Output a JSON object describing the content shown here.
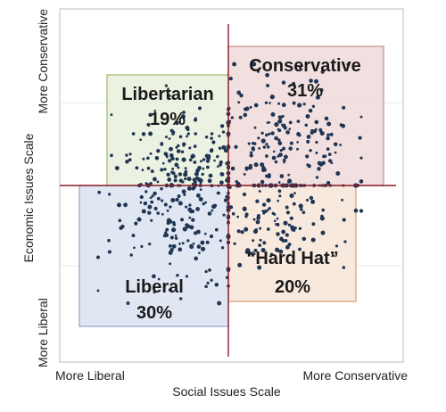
{
  "chart_data": {
    "type": "scatter",
    "title": "",
    "xlabel": "Social Issues Scale",
    "ylabel": "Economic Issues Scale",
    "x_tick_labels": [
      "More Liberal",
      "More Conservative"
    ],
    "y_tick_labels": [
      "More Liberal",
      "More Conservative"
    ],
    "xlim": [
      -1,
      1
    ],
    "ylim": [
      -1,
      1
    ],
    "grid": true,
    "quadrants": [
      {
        "key": "libertarian",
        "name": "Libertarian",
        "percent": "19%",
        "fill": "#e9f0dc",
        "stroke": "#9fb86f"
      },
      {
        "key": "conservative",
        "name": "Conservative",
        "percent": "31%",
        "fill": "#f0dada",
        "stroke": "#c48a8a"
      },
      {
        "key": "liberal",
        "name": "Liberal",
        "percent": "30%",
        "fill": "#dbe3f1",
        "stroke": "#8ea3c8"
      },
      {
        "key": "hardhat",
        "name": "“Hard Hat”",
        "percent": "20%",
        "fill": "#f7e5d8",
        "stroke": "#d49a74"
      }
    ],
    "point_color": "#1f3552",
    "divider_color": "#8b1c2a"
  }
}
